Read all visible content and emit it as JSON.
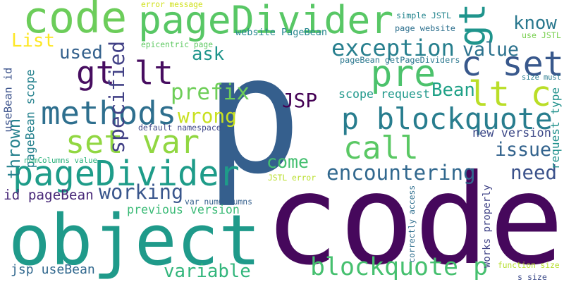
{
  "words": [
    {
      "text": "p",
      "color": "#355f8d",
      "rotated": false
    },
    {
      "text": "code",
      "color": "#46085c",
      "rotated": false
    },
    {
      "text": "object",
      "color": "#1f9a8a",
      "rotated": false
    },
    {
      "text": "code",
      "color": "#6ccd5a",
      "rotated": false
    },
    {
      "text": "pageDivider",
      "color": "#58c765",
      "rotated": false
    },
    {
      "text": "pageDivider",
      "color": "#1e9c89",
      "rotated": false
    },
    {
      "text": "gt lt",
      "color": "#470d60",
      "rotated": false
    },
    {
      "text": "methods",
      "color": "#2e6f8e",
      "rotated": false
    },
    {
      "text": "set var",
      "color": "#91d742",
      "rotated": false
    },
    {
      "text": "call",
      "color": "#5ac864",
      "rotated": false
    },
    {
      "text": "p blockquote",
      "color": "#287d8e",
      "rotated": false
    },
    {
      "text": "blockquote p",
      "color": "#46c06f",
      "rotated": false
    },
    {
      "text": "pre",
      "color": "#4cc26c",
      "rotated": false
    },
    {
      "text": "lt c",
      "color": "#bade28",
      "rotated": false
    },
    {
      "text": "c set",
      "color": "#38588c",
      "rotated": false
    },
    {
      "text": "gt",
      "color": "#1f948c",
      "rotated": true
    },
    {
      "text": "specified",
      "color": "#424186",
      "rotated": true
    },
    {
      "text": "exception",
      "color": "#277f8e",
      "rotated": false
    },
    {
      "text": "encountering",
      "color": "#31688e",
      "rotated": false
    },
    {
      "text": "working",
      "color": "#39568c",
      "rotated": false
    },
    {
      "text": "variable",
      "color": "#31b57b",
      "rotated": false
    },
    {
      "text": "prefix",
      "color": "#6ece58",
      "rotated": false
    },
    {
      "text": "wrong",
      "color": "#c8e020",
      "rotated": false
    },
    {
      "text": "JSP",
      "color": "#440154",
      "rotated": false
    },
    {
      "text": "Bean",
      "color": "#1fa187",
      "rotated": false
    },
    {
      "text": "know",
      "color": "#2a788e",
      "rotated": false
    },
    {
      "text": "value",
      "color": "#2c728e",
      "rotated": false
    },
    {
      "text": "issue",
      "color": "#33638d",
      "rotated": false
    },
    {
      "text": "need",
      "color": "#3b528b",
      "rotated": false
    },
    {
      "text": "come",
      "color": "#44bf70",
      "rotated": false
    },
    {
      "text": "used",
      "color": "#34618d",
      "rotated": false
    },
    {
      "text": "ask",
      "color": "#1f958b",
      "rotated": false
    },
    {
      "text": "List",
      "color": "#fde725",
      "rotated": false
    },
    {
      "text": "thrown",
      "color": "#26828e",
      "rotated": true
    },
    {
      "text": "previous version",
      "color": "#3aba76",
      "rotated": false
    },
    {
      "text": "id pageBean",
      "color": "#482878",
      "rotated": false
    },
    {
      "text": "jsp useBean",
      "color": "#31688e",
      "rotated": false
    },
    {
      "text": "works properly",
      "color": "#414487",
      "rotated": true
    },
    {
      "text": "new version",
      "color": "#3e4a89",
      "rotated": false
    },
    {
      "text": "scope request",
      "color": "#1f988b",
      "rotated": false
    },
    {
      "text": "pageBean scope",
      "color": "#26828e",
      "rotated": true
    },
    {
      "text": "useBean id",
      "color": "#3b528b",
      "rotated": true
    },
    {
      "text": "request type",
      "color": "#21918c",
      "rotated": true
    },
    {
      "text": "simple JSTL",
      "color": "#25858e",
      "rotated": false
    },
    {
      "text": "page website",
      "color": "#2d708e",
      "rotated": false
    },
    {
      "text": "use JSTL",
      "color": "#7ad151",
      "rotated": false
    },
    {
      "text": "website PageBean",
      "color": "#24868e",
      "rotated": false
    },
    {
      "text": "epicentric page",
      "color": "#5ec962",
      "rotated": false
    },
    {
      "text": "pageBean getPageDividers",
      "color": "#2a778e",
      "rotated": false
    },
    {
      "text": "size must",
      "color": "#297b8e",
      "rotated": false
    },
    {
      "text": "default namespace",
      "color": "#3f4788",
      "rotated": false
    },
    {
      "text": "numColumns value",
      "color": "#2db27d",
      "rotated": false
    },
    {
      "text": "var numColumns",
      "color": "#35608d",
      "rotated": false
    },
    {
      "text": "JSTL error",
      "color": "#b8de29",
      "rotated": false
    },
    {
      "text": "correctly access",
      "color": "#2e6e8e",
      "rotated": true
    },
    {
      "text": "function size",
      "color": "#b5de2b",
      "rotated": false
    },
    {
      "text": "s size",
      "color": "#3e4c8a",
      "rotated": false
    },
    {
      "text": "error message",
      "color": "#d0e11c",
      "rotated": false
    }
  ]
}
